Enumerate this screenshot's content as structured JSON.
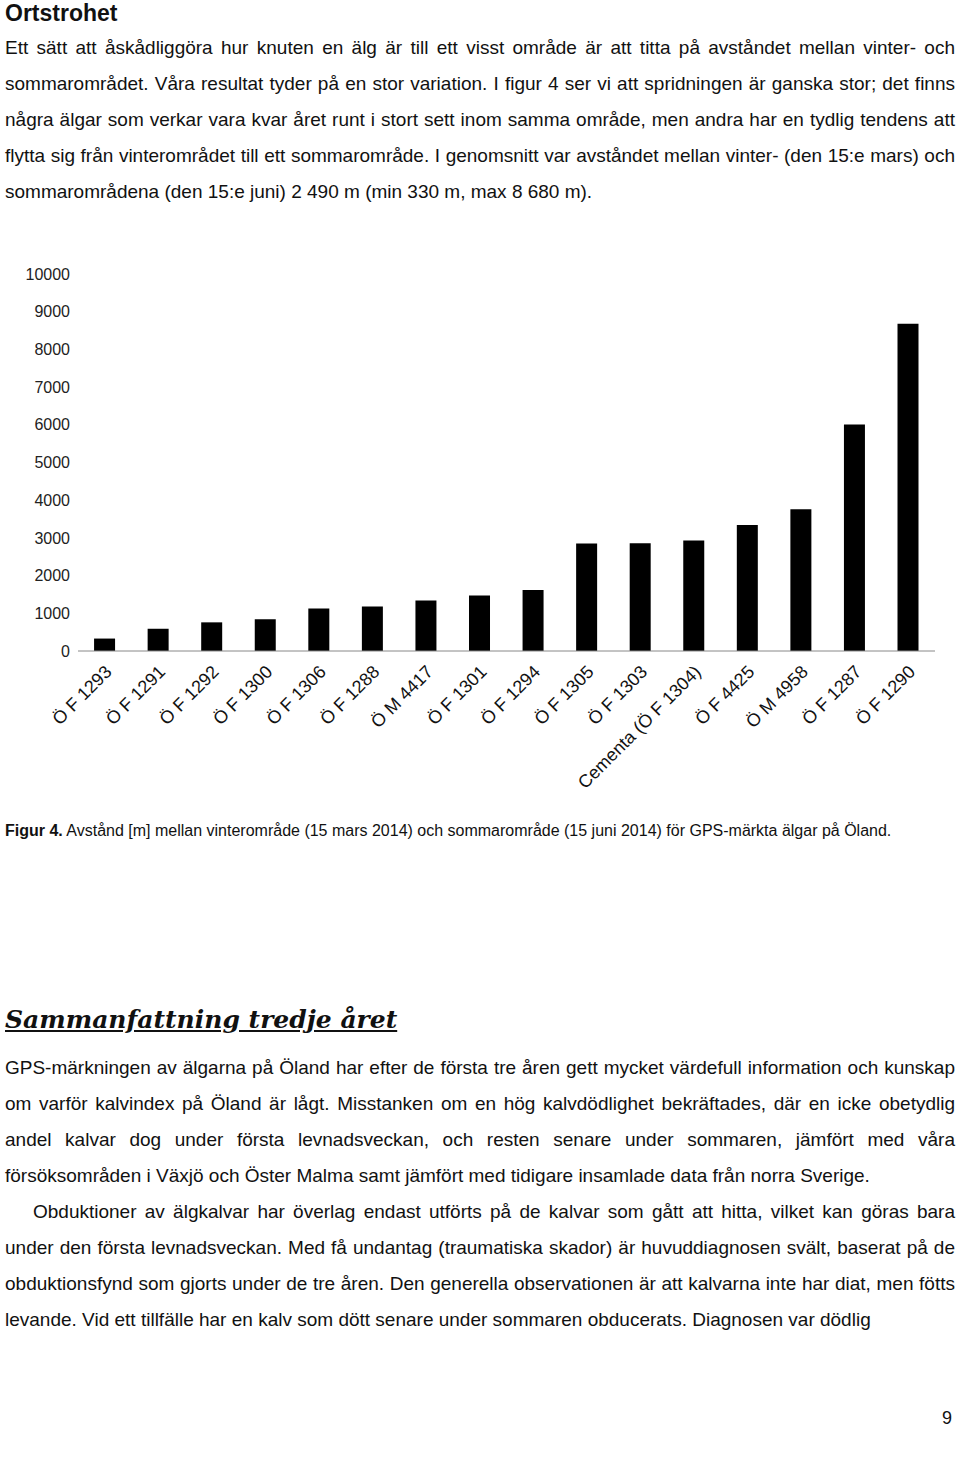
{
  "heading": "Ortstrohet",
  "intro": "Ett sätt att åskådliggöra hur knuten en älg är till ett visst område är att titta på avståndet mellan vinter- och sommarområdet. Våra resultat tyder på en stor variation. I figur 4 ser vi att spridningen är ganska stor; det finns några älgar som verkar vara kvar året runt i stort sett inom samma område, men andra har en tydlig tendens att flytta sig från vinterområdet till ett sommarområde. I genomsnitt var avståndet mellan vinter- (den 15:e mars) och sommarområdena (den 15:e juni) 2 490 m (min 330 m, max 8 680 m).",
  "chart_data": {
    "type": "bar",
    "categories": [
      "Ö F 1293",
      "Ö F 1291",
      "Ö F 1292",
      "Ö F 1300",
      "Ö F 1306",
      "Ö F 1288",
      "Ö M 4417",
      "Ö F 1301",
      "Ö F 1294",
      "Ö F 1305",
      "Ö F 1303",
      "Cementa (Ö F 1304)",
      "Ö F 4425",
      "Ö M 4958",
      "Ö F 1287",
      "Ö F 1290"
    ],
    "values": [
      330,
      590,
      760,
      840,
      1130,
      1180,
      1340,
      1470,
      1620,
      2850,
      2860,
      2930,
      3340,
      3760,
      6010,
      8680
    ],
    "color": "#000000",
    "ylim": [
      0,
      10000
    ],
    "yticks": [
      0,
      1000,
      2000,
      3000,
      4000,
      5000,
      6000,
      7000,
      8000,
      9000,
      10000
    ],
    "grid": false
  },
  "caption": {
    "label": "Figur 4.",
    "text": "Avstånd [m] mellan vinterområde (15 mars 2014) och sommarområde (15 juni 2014) för GPS-märkta älgar på Öland."
  },
  "summary": {
    "heading": "Sammanfattning tredje året",
    "paragraphs": [
      "GPS-märkningen av älgarna på Öland har efter de första tre åren gett mycket värdefull information och kunskap om varför kalvindex på Öland är lågt. Misstanken om en hög kalvdödlighet bekräftades, där en icke obetydlig andel kalvar dog under första levnadsveckan, och resten senare under sommaren, jämfört med våra försöksområden i Växjö och Öster Malma samt jämfört med tidigare insamlade data från norra Sverige.",
      "Obduktioner av älgkalvar har överlag endast utförts på de kalvar som gått att hitta, vilket kan göras bara under den första levnadsveckan. Med få undantag (traumatiska skador) är huvuddiagnosen svält, baserat på de obduktionsfynd som gjorts under de tre åren. Den generella observationen är att kalvarna inte har diat, men fötts levande. Vid ett tillfälle har en kalv som dött senare under sommaren obducerats. Diagnosen var dödlig"
    ]
  },
  "page_number": "9"
}
